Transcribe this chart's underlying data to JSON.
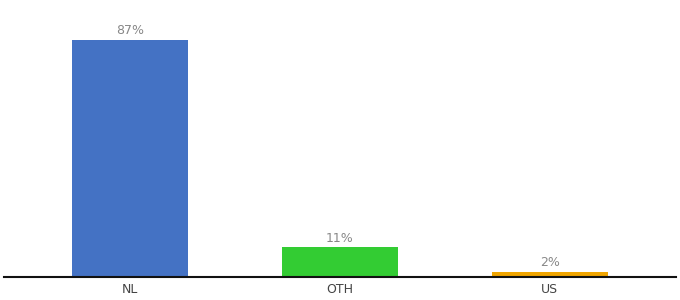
{
  "categories": [
    "NL",
    "OTH",
    "US"
  ],
  "values": [
    87,
    11,
    2
  ],
  "bar_colors": [
    "#4472c4",
    "#33cc33",
    "#f0a500"
  ],
  "labels": [
    "87%",
    "11%",
    "2%"
  ],
  "background_color": "#ffffff",
  "ylim": [
    0,
    100
  ],
  "bar_width": 0.55,
  "label_fontsize": 9,
  "tick_fontsize": 9,
  "spine_color": "#111111",
  "label_color": "#888888"
}
